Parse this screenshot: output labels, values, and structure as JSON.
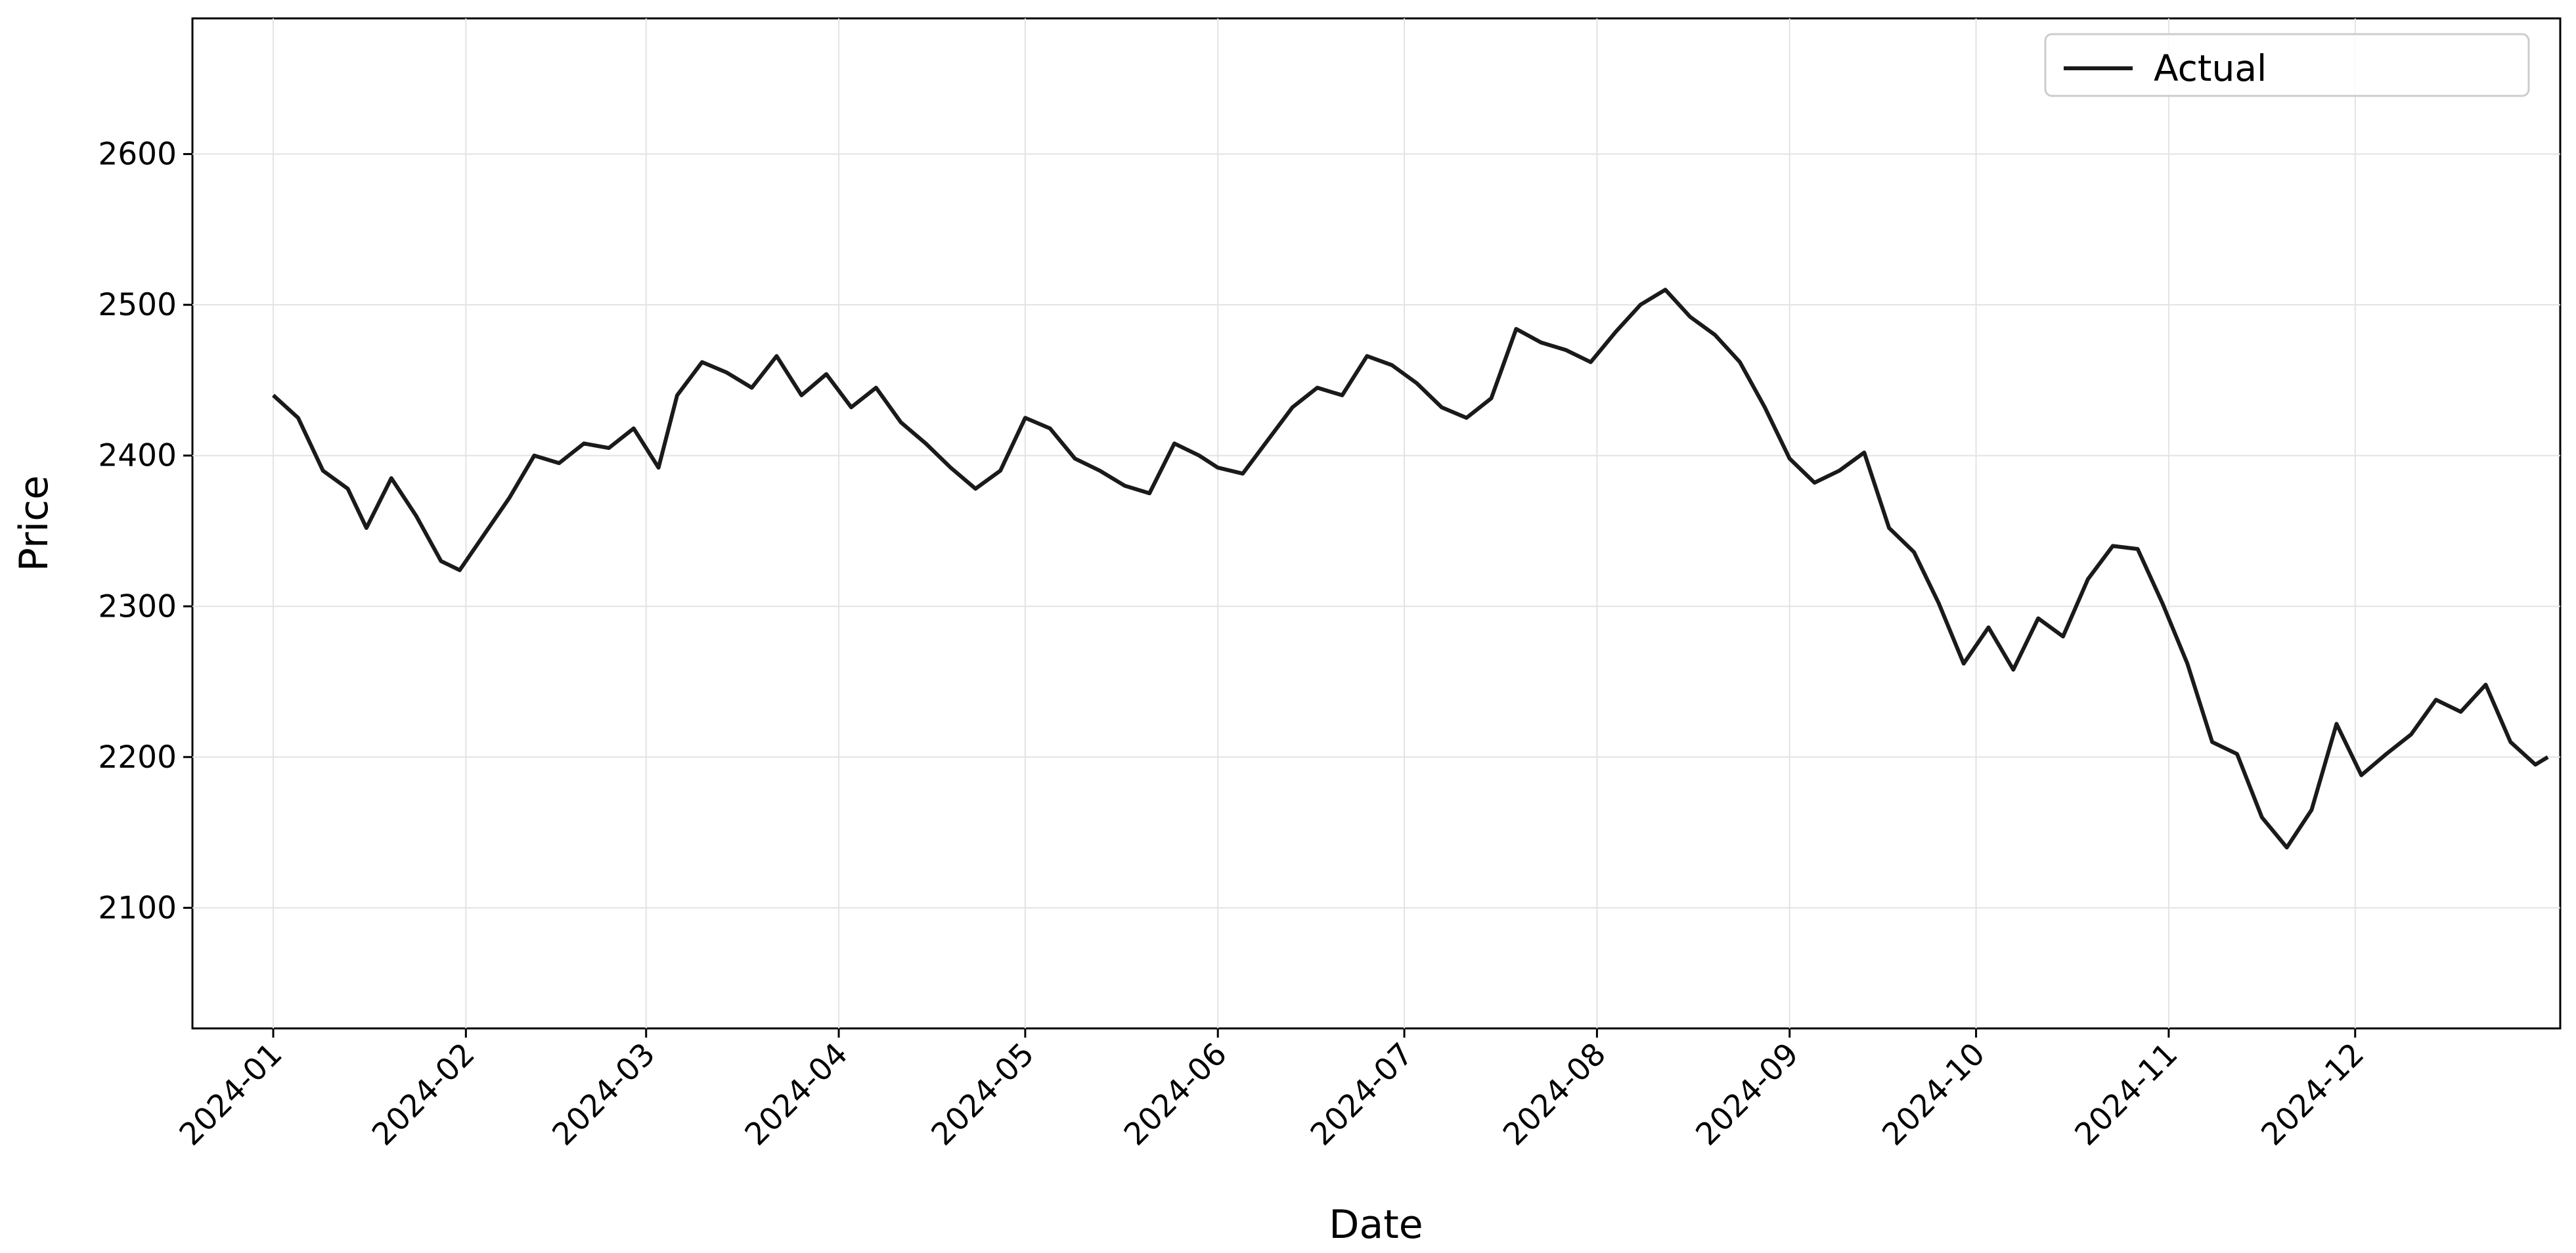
{
  "chart_data": {
    "type": "line",
    "title": "",
    "xlabel": "Date",
    "ylabel": "Price",
    "x_range": [
      "2023-12-19",
      "2025-01-03"
    ],
    "ylim": [
      2020,
      2690
    ],
    "x_ticks": [
      "2024-01",
      "2024-02",
      "2024-03",
      "2024-04",
      "2024-05",
      "2024-06",
      "2024-07",
      "2024-08",
      "2024-09",
      "2024-10",
      "2024-11",
      "2024-12"
    ],
    "y_ticks": [
      2100,
      2200,
      2300,
      2400,
      2500,
      2600
    ],
    "grid": true,
    "legend_position": "top-right",
    "series": [
      {
        "name": "Actual",
        "color": "#1a1a1a",
        "style": "solid",
        "points": [
          [
            "2024-01-01",
            2440
          ],
          [
            "2024-01-05",
            2425
          ],
          [
            "2024-01-09",
            2390
          ],
          [
            "2024-01-13",
            2378
          ],
          [
            "2024-01-16",
            2352
          ],
          [
            "2024-01-20",
            2385
          ],
          [
            "2024-01-24",
            2360
          ],
          [
            "2024-01-28",
            2330
          ],
          [
            "2024-01-31",
            2324
          ],
          [
            "2024-02-04",
            2348
          ],
          [
            "2024-02-08",
            2372
          ],
          [
            "2024-02-12",
            2400
          ],
          [
            "2024-02-16",
            2395
          ],
          [
            "2024-02-20",
            2408
          ],
          [
            "2024-02-24",
            2405
          ],
          [
            "2024-02-28",
            2418
          ],
          [
            "2024-03-03",
            2392
          ],
          [
            "2024-03-06",
            2440
          ],
          [
            "2024-03-10",
            2462
          ],
          [
            "2024-03-14",
            2455
          ],
          [
            "2024-03-18",
            2445
          ],
          [
            "2024-03-22",
            2466
          ],
          [
            "2024-03-26",
            2440
          ],
          [
            "2024-03-30",
            2454
          ],
          [
            "2024-04-03",
            2432
          ],
          [
            "2024-04-07",
            2445
          ],
          [
            "2024-04-11",
            2422
          ],
          [
            "2024-04-15",
            2408
          ],
          [
            "2024-04-19",
            2392
          ],
          [
            "2024-04-23",
            2378
          ],
          [
            "2024-04-27",
            2390
          ],
          [
            "2024-05-01",
            2425
          ],
          [
            "2024-05-05",
            2418
          ],
          [
            "2024-05-09",
            2398
          ],
          [
            "2024-05-13",
            2390
          ],
          [
            "2024-05-17",
            2380
          ],
          [
            "2024-05-21",
            2375
          ],
          [
            "2024-05-25",
            2408
          ],
          [
            "2024-05-29",
            2400
          ],
          [
            "2024-06-01",
            2392
          ],
          [
            "2024-06-05",
            2388
          ],
          [
            "2024-06-09",
            2410
          ],
          [
            "2024-06-13",
            2432
          ],
          [
            "2024-06-17",
            2445
          ],
          [
            "2024-06-21",
            2440
          ],
          [
            "2024-06-25",
            2466
          ],
          [
            "2024-06-29",
            2460
          ],
          [
            "2024-07-03",
            2448
          ],
          [
            "2024-07-07",
            2432
          ],
          [
            "2024-07-11",
            2425
          ],
          [
            "2024-07-15",
            2438
          ],
          [
            "2024-07-19",
            2484
          ],
          [
            "2024-07-23",
            2475
          ],
          [
            "2024-07-27",
            2470
          ],
          [
            "2024-07-31",
            2462
          ],
          [
            "2024-08-04",
            2482
          ],
          [
            "2024-08-08",
            2500
          ],
          [
            "2024-08-12",
            2510
          ],
          [
            "2024-08-16",
            2492
          ],
          [
            "2024-08-20",
            2480
          ],
          [
            "2024-08-24",
            2462
          ],
          [
            "2024-08-28",
            2432
          ],
          [
            "2024-09-01",
            2398
          ],
          [
            "2024-09-05",
            2382
          ],
          [
            "2024-09-09",
            2390
          ],
          [
            "2024-09-13",
            2402
          ],
          [
            "2024-09-17",
            2352
          ],
          [
            "2024-09-21",
            2336
          ],
          [
            "2024-09-25",
            2302
          ],
          [
            "2024-09-29",
            2262
          ],
          [
            "2024-10-03",
            2286
          ],
          [
            "2024-10-07",
            2258
          ],
          [
            "2024-10-11",
            2292
          ],
          [
            "2024-10-15",
            2280
          ],
          [
            "2024-10-19",
            2318
          ],
          [
            "2024-10-23",
            2340
          ],
          [
            "2024-10-27",
            2338
          ],
          [
            "2024-10-31",
            2302
          ],
          [
            "2024-11-04",
            2262
          ],
          [
            "2024-11-08",
            2210
          ],
          [
            "2024-11-12",
            2202
          ],
          [
            "2024-11-16",
            2160
          ],
          [
            "2024-11-20",
            2140
          ],
          [
            "2024-11-24",
            2165
          ],
          [
            "2024-11-28",
            2222
          ],
          [
            "2024-12-02",
            2188
          ],
          [
            "2024-12-06",
            2202
          ],
          [
            "2024-12-10",
            2215
          ],
          [
            "2024-12-14",
            2238
          ],
          [
            "2024-12-18",
            2230
          ],
          [
            "2024-12-22",
            2248
          ],
          [
            "2024-12-26",
            2210
          ],
          [
            "2024-12-30",
            2195
          ],
          [
            "2025-01-01",
            2200
          ]
        ]
      }
    ]
  }
}
